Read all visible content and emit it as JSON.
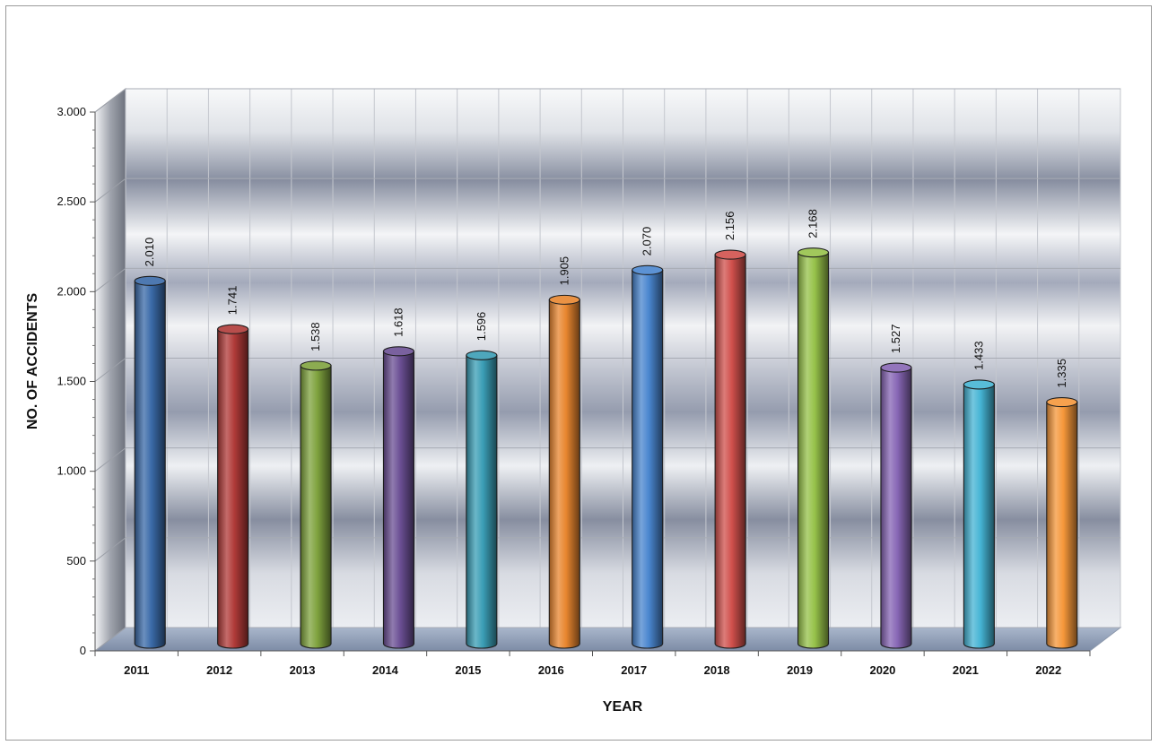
{
  "chart_data": {
    "type": "bar",
    "style": "3d-cylinder",
    "title": "",
    "xlabel": "YEAR",
    "ylabel": "NO. OF ACCIDENTS",
    "ylim": [
      0,
      3000
    ],
    "yticks": [
      0,
      500,
      1000,
      1500,
      2000,
      2500,
      3000
    ],
    "ytick_labels": [
      "0",
      "500",
      "1.000",
      "1.500",
      "2.000",
      "2.500",
      "3.000"
    ],
    "categories": [
      "2011",
      "2012",
      "2013",
      "2014",
      "2015",
      "2016",
      "2017",
      "2018",
      "2019",
      "2020",
      "2021",
      "2022"
    ],
    "values": [
      2010,
      1741,
      1538,
      1618,
      1596,
      1905,
      2070,
      2156,
      2168,
      1527,
      1433,
      1335
    ],
    "value_labels": [
      "2.010",
      "1.741",
      "1.538",
      "1.618",
      "1.596",
      "1.905",
      "2.070",
      "2.156",
      "2.168",
      "1.527",
      "1.433",
      "1.335"
    ],
    "colors": [
      "#3a6aa8",
      "#b03a38",
      "#7fa33e",
      "#6b4f94",
      "#3a9db5",
      "#e8862f",
      "#4a86cf",
      "#d0504c",
      "#96c24a",
      "#8766b5",
      "#45b4d4",
      "#f5973a"
    ],
    "grid": true,
    "legend": "none"
  }
}
